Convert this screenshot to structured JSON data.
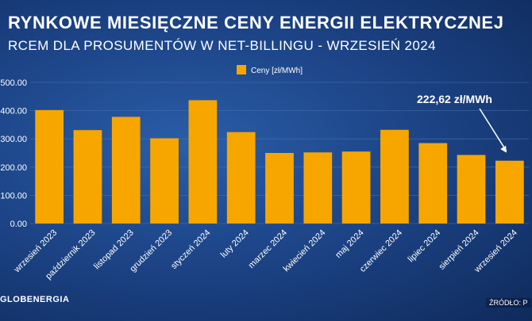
{
  "header": {
    "title": "RYNKOWE MIESIĘCZNE CENY ENERGII ELEKTRYCZNEJ",
    "subtitle": "RCEM DLA PROSUMENTÓW W NET-BILLINGU - WRZESIEŃ 2024"
  },
  "footer": {
    "logo": "GLOBENERGIA",
    "source": "ŹRÓDŁO: P"
  },
  "colors": {
    "bar": "#f7a600",
    "grid": "#4a72b0",
    "text": "#ffffff"
  },
  "chart_data": {
    "type": "bar",
    "categories": [
      "wrzesień 2023",
      "październik 2023",
      "listopad 2023",
      "grudzień 2023",
      "styczeń 2024",
      "luty 2024",
      "marzec 2024",
      "kwiecień 2024",
      "maj 2024",
      "czerwiec 2024",
      "lipiec 2024",
      "sierpień 2024",
      "wrzesień 2024"
    ],
    "series": [
      {
        "name": "Ceny [zł/MWh]",
        "values": [
          402,
          331,
          378,
          302,
          437,
          324,
          250,
          252,
          255,
          332,
          285,
          243,
          222.62
        ]
      }
    ],
    "y_ticks": [
      "0.00",
      "100.00",
      "200.00",
      "300.00",
      "400.00",
      "500.00"
    ],
    "ylim": [
      0,
      500
    ],
    "grid": true,
    "legend": "top-center",
    "annotation": {
      "text": "222,62 zł/MWh",
      "category": "wrzesień 2024"
    }
  }
}
